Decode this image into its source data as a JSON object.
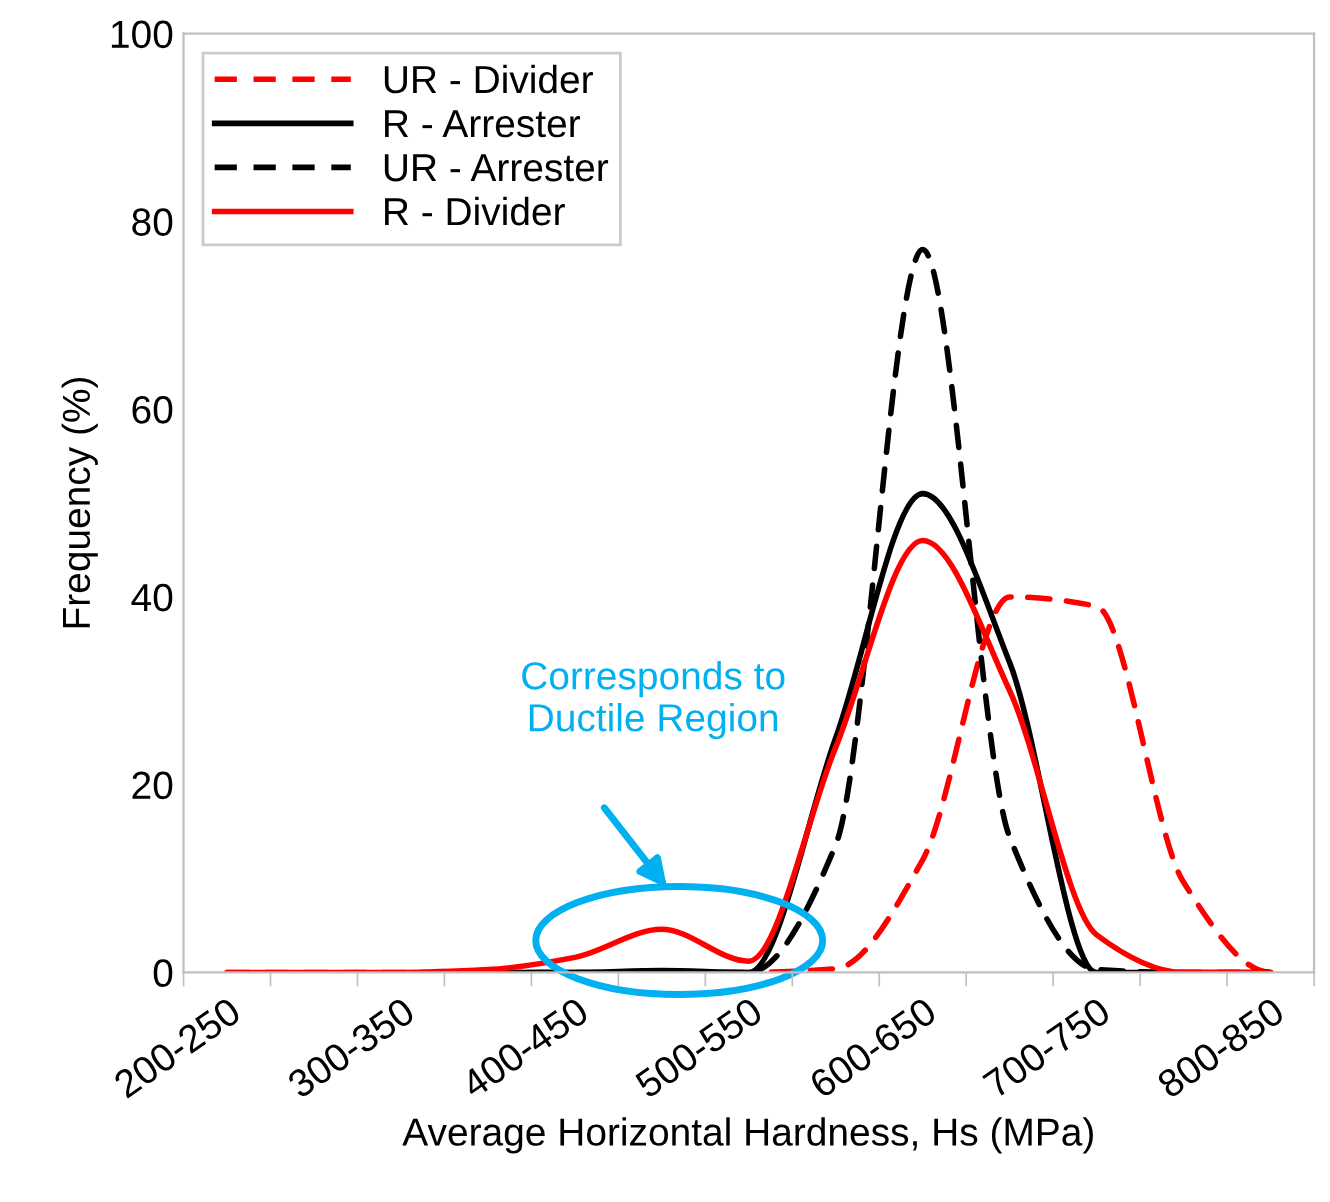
{
  "chart_data": {
    "type": "line",
    "xlabel": "Average Horizontal Hardness, Hs (MPa)",
    "ylabel": "Frequency (%)",
    "categories": [
      "200-250",
      null,
      "300-350",
      null,
      "400-450",
      null,
      "500-550",
      null,
      "600-650",
      null,
      "700-750",
      null,
      "800-850"
    ],
    "ylim": [
      0,
      100
    ],
    "yticks": [
      0,
      20,
      40,
      60,
      80,
      100
    ],
    "grid": false,
    "legend": "top left",
    "series": [
      {
        "name": "UR - Divider",
        "color": "#ff0000",
        "line_style": "dashed",
        "values": [
          0,
          0,
          0,
          0,
          0,
          0,
          0,
          0.4,
          12,
          40,
          39,
          9.6,
          0
        ]
      },
      {
        "name": "R - Arrester",
        "color": "#000000",
        "line_style": "solid",
        "values": [
          null,
          null,
          null,
          0,
          0,
          0.2,
          0,
          25,
          51,
          33,
          0,
          0,
          0
        ]
      },
      {
        "name": "UR - Arrester",
        "color": "#000000",
        "line_style": "dashed",
        "values": [
          null,
          null,
          null,
          0,
          0,
          0,
          0,
          13.6,
          77,
          14.4,
          0.3,
          0,
          0
        ]
      },
      {
        "name": "R - Divider",
        "color": "#ff0000",
        "line_style": "solid",
        "values": [
          0,
          0,
          0,
          0.3,
          1.6,
          4.6,
          1.2,
          24,
          46,
          30,
          4,
          0,
          0
        ]
      }
    ],
    "annotations": [
      "Corresponds to Ductile Region"
    ]
  }
}
